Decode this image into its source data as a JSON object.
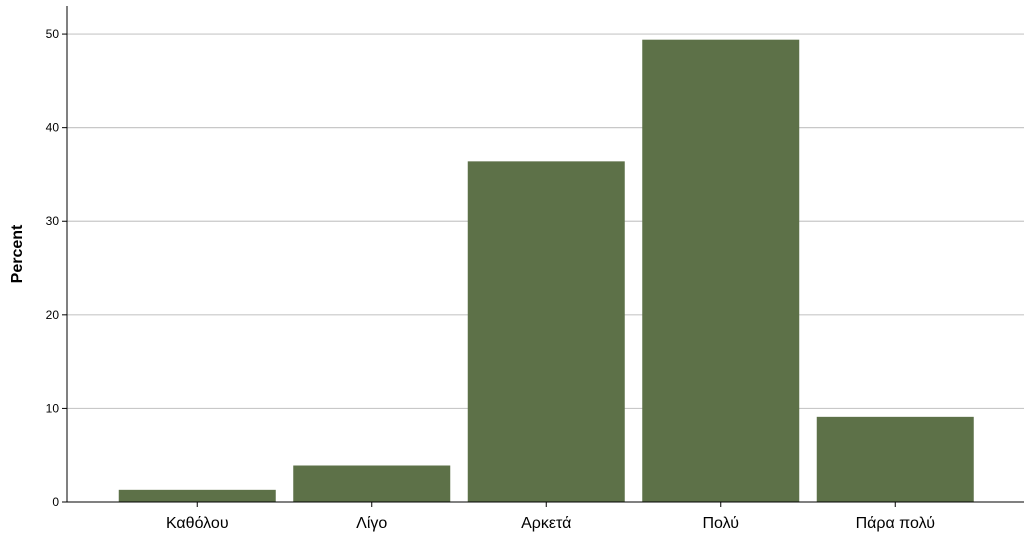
{
  "chart_data": {
    "type": "bar",
    "title": "",
    "xlabel": "",
    "ylabel": "Percent",
    "ylim": [
      0,
      53
    ],
    "yticks": [
      0,
      10,
      20,
      30,
      40,
      50
    ],
    "grid": true,
    "categories": [
      "Καθόλου",
      "Λίγο",
      "Αρκετά",
      "Πολύ",
      "Πάρα πολύ"
    ],
    "values": [
      1.3,
      3.9,
      36.4,
      49.4,
      9.1
    ],
    "bar_color": "#5d7148",
    "grid_color": "#c8c8c8",
    "axis_color": "#000000"
  }
}
